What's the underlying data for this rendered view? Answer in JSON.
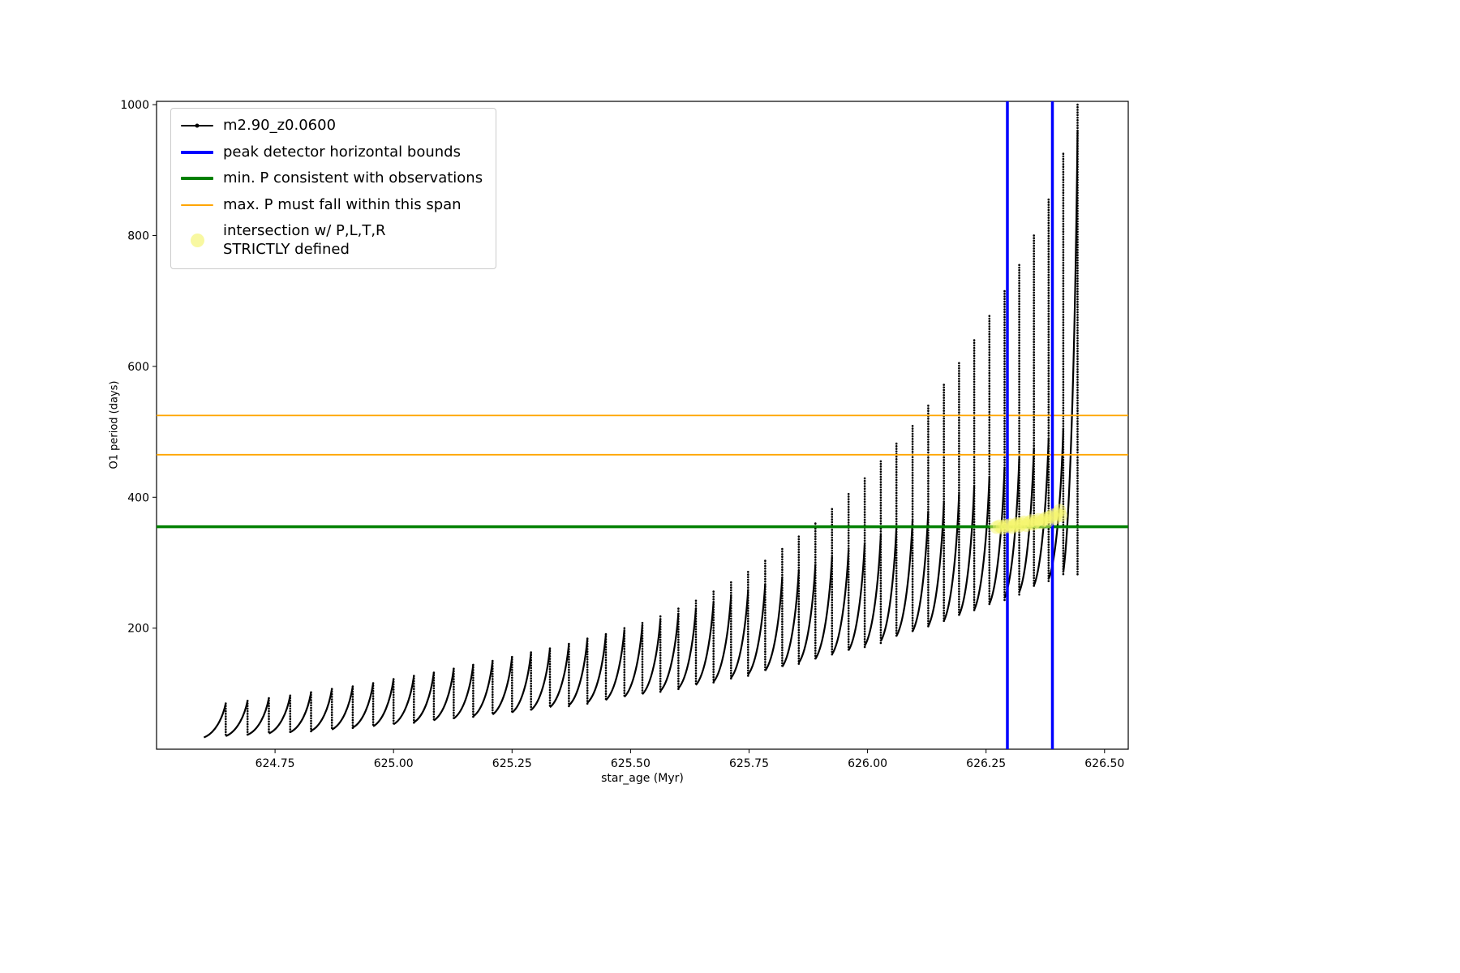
{
  "chart_data": {
    "type": "line",
    "title": "",
    "xlabel": "star_age (Myr)",
    "ylabel": "O1 period (days)",
    "xlim": [
      624.5,
      626.55
    ],
    "ylim": [
      15,
      1005
    ],
    "grid": false,
    "legend_position": "upper-left",
    "x_ticks": [
      624.75,
      625.0,
      625.25,
      625.5,
      625.75,
      626.0,
      626.25,
      626.5
    ],
    "x_tick_labels": [
      "624.75",
      "625.00",
      "625.25",
      "625.50",
      "625.75",
      "626.00",
      "626.25",
      "626.50"
    ],
    "y_ticks": [
      200,
      400,
      600,
      800,
      1000
    ],
    "y_tick_labels": [
      "200",
      "400",
      "600",
      "800",
      "1000"
    ],
    "series": [
      {
        "name": "m2.90_z0.0600",
        "color": "#000000",
        "style": "sawtooth line with dot markers and vertical pulse spikes",
        "teeth_format": [
          "x_start_Myr",
          "y_min_days",
          "y_peak_days",
          "spike_top_days"
        ],
        "x_end": 626.443,
        "teeth": [
          [
            624.6,
            33,
            85,
            85
          ],
          [
            624.646,
            35,
            89,
            89
          ],
          [
            624.692,
            37,
            93,
            93
          ],
          [
            624.737,
            39,
            97,
            97
          ],
          [
            624.782,
            41,
            102,
            102
          ],
          [
            624.826,
            43,
            107,
            107
          ],
          [
            624.87,
            45,
            111,
            111
          ],
          [
            624.914,
            48,
            116,
            116
          ],
          [
            624.957,
            50,
            122,
            122
          ],
          [
            625.0,
            53,
            127,
            127
          ],
          [
            625.043,
            56,
            132,
            132
          ],
          [
            625.085,
            59,
            138,
            138
          ],
          [
            625.127,
            62,
            144,
            144
          ],
          [
            625.168,
            65,
            150,
            150
          ],
          [
            625.209,
            68,
            156,
            156
          ],
          [
            625.25,
            71,
            163,
            163
          ],
          [
            625.29,
            75,
            169,
            169
          ],
          [
            625.33,
            79,
            176,
            176
          ],
          [
            625.37,
            82,
            184,
            184
          ],
          [
            625.409,
            86,
            191,
            191
          ],
          [
            625.448,
            90,
            198,
            200
          ],
          [
            625.487,
            95,
            206,
            208
          ],
          [
            625.525,
            99,
            214,
            218
          ],
          [
            625.563,
            104,
            223,
            230
          ],
          [
            625.601,
            108,
            231,
            242
          ],
          [
            625.638,
            113,
            240,
            256
          ],
          [
            625.675,
            118,
            249,
            270
          ],
          [
            625.712,
            124,
            258,
            286
          ],
          [
            625.748,
            129,
            268,
            303
          ],
          [
            625.784,
            135,
            278,
            321
          ],
          [
            625.82,
            141,
            288,
            340
          ],
          [
            625.855,
            147,
            298,
            360
          ],
          [
            625.89,
            153,
            309,
            382
          ],
          [
            625.925,
            160,
            320,
            405
          ],
          [
            625.96,
            166,
            331,
            429
          ],
          [
            625.994,
            173,
            343,
            455
          ],
          [
            626.028,
            180,
            355,
            482
          ],
          [
            626.061,
            188,
            366,
            509
          ],
          [
            626.095,
            195,
            379,
            540
          ],
          [
            626.128,
            203,
            392,
            572
          ],
          [
            626.161,
            211,
            405,
            605
          ],
          [
            626.193,
            220,
            418,
            640
          ],
          [
            626.225,
            228,
            432,
            677
          ],
          [
            626.257,
            237,
            446,
            715
          ],
          [
            626.289,
            246,
            460,
            755
          ],
          [
            626.32,
            255,
            475,
            800
          ],
          [
            626.351,
            265,
            490,
            855
          ],
          [
            626.382,
            275,
            505,
            925
          ],
          [
            626.413,
            285,
            960,
            1000
          ]
        ]
      }
    ],
    "vlines": {
      "label": "peak detector horizontal bounds",
      "color": "#0000ff",
      "x": [
        626.295,
        626.39
      ]
    },
    "hlines_min": {
      "label": "min. P consistent with observations",
      "color": "#008000",
      "y": 355
    },
    "hlines_span": {
      "label": "max. P must fall within this span",
      "color": "#ffa500",
      "y": [
        465,
        525
      ]
    },
    "scatter": {
      "label": "intersection w/ P,L,T,R\nSTRICTLY defined",
      "color": "#f5f56e",
      "points": [
        [
          626.272,
          354
        ],
        [
          626.278,
          356
        ],
        [
          626.284,
          353
        ],
        [
          626.29,
          357
        ],
        [
          626.295,
          355
        ],
        [
          626.3,
          358
        ],
        [
          626.305,
          354
        ],
        [
          626.31,
          357
        ],
        [
          626.315,
          360
        ],
        [
          626.32,
          356
        ],
        [
          626.325,
          359
        ],
        [
          626.33,
          362
        ],
        [
          626.335,
          357
        ],
        [
          626.34,
          361
        ],
        [
          626.345,
          364
        ],
        [
          626.35,
          359
        ],
        [
          626.355,
          363
        ],
        [
          626.36,
          366
        ],
        [
          626.365,
          361
        ],
        [
          626.37,
          365
        ],
        [
          626.375,
          368
        ],
        [
          626.38,
          363
        ],
        [
          626.385,
          370
        ],
        [
          626.39,
          373
        ],
        [
          626.395,
          368
        ],
        [
          626.4,
          375
        ],
        [
          626.405,
          380
        ],
        [
          626.408,
          372
        ]
      ]
    }
  }
}
